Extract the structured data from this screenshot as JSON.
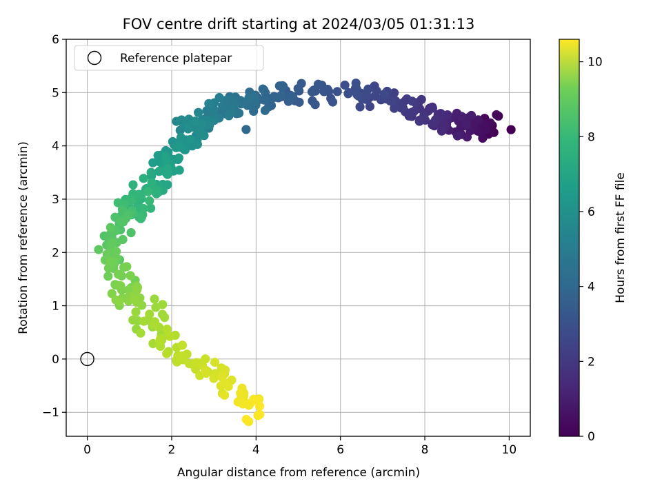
{
  "chart_data": {
    "type": "scatter",
    "title": "FOV centre drift starting at 2024/03/05 01:31:13",
    "xlabel": "Angular distance from reference (arcmin)",
    "ylabel": "Rotation from reference (arcmin)",
    "xlim": [
      -0.5,
      10.5
    ],
    "ylim": [
      -1.45,
      6.0
    ],
    "xticks": [
      0,
      2,
      4,
      6,
      8,
      10
    ],
    "yticks": [
      -1,
      0,
      1,
      2,
      3,
      4,
      5,
      6
    ],
    "grid": true,
    "legend": {
      "placement": "top-left",
      "entries": [
        "Reference platepar"
      ]
    },
    "reference_point": {
      "x": 0,
      "y": 0
    },
    "colorbar": {
      "label": "Hours from first FF file",
      "range": [
        0,
        10.6
      ],
      "ticks": [
        0,
        2,
        4,
        6,
        8,
        10
      ],
      "colormap": "viridis"
    },
    "series_path_approx": [
      {
        "hours": 0.0,
        "x": 9.6,
        "y": 4.4
      },
      {
        "hours": 0.5,
        "x": 9.2,
        "y": 4.35
      },
      {
        "hours": 1.0,
        "x": 8.7,
        "y": 4.4
      },
      {
        "hours": 1.5,
        "x": 8.0,
        "y": 4.6
      },
      {
        "hours": 2.0,
        "x": 7.3,
        "y": 4.85
      },
      {
        "hours": 2.5,
        "x": 6.4,
        "y": 5.0
      },
      {
        "hours": 3.0,
        "x": 5.0,
        "y": 5.0
      },
      {
        "hours": 3.5,
        "x": 4.2,
        "y": 4.9
      },
      {
        "hours": 4.0,
        "x": 3.6,
        "y": 4.75
      },
      {
        "hours": 4.5,
        "x": 3.0,
        "y": 4.6
      },
      {
        "hours": 5.0,
        "x": 2.5,
        "y": 4.35
      },
      {
        "hours": 5.5,
        "x": 2.2,
        "y": 4.0
      },
      {
        "hours": 6.0,
        "x": 1.9,
        "y": 3.6
      },
      {
        "hours": 6.5,
        "x": 1.6,
        "y": 3.25
      },
      {
        "hours": 7.0,
        "x": 1.2,
        "y": 2.95
      },
      {
        "hours": 7.5,
        "x": 0.8,
        "y": 2.6
      },
      {
        "hours": 8.0,
        "x": 0.5,
        "y": 2.0
      },
      {
        "hours": 8.5,
        "x": 0.8,
        "y": 1.4
      },
      {
        "hours": 9.0,
        "x": 1.4,
        "y": 0.8
      },
      {
        "hours": 9.5,
        "x": 2.1,
        "y": 0.15
      },
      {
        "hours": 10.0,
        "x": 3.2,
        "y": -0.4
      },
      {
        "hours": 10.6,
        "x": 4.1,
        "y": -1.0
      }
    ],
    "point_count": 520
  }
}
